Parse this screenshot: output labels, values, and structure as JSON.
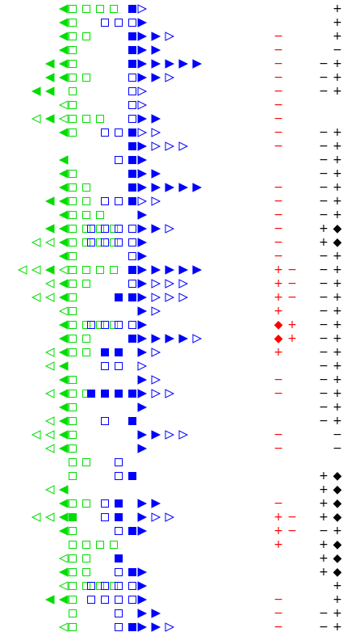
{
  "rows": [
    {
      "red": [],
      "black": [
        "+"
      ]
    },
    {
      "red": [],
      "black": [
        "+"
      ]
    },
    {
      "red": [
        "−"
      ],
      "black": [
        "+"
      ]
    },
    {
      "red": [
        "−"
      ],
      "black": [
        "−"
      ]
    },
    {
      "red": [
        "−"
      ],
      "black": [
        "−",
        "+"
      ]
    },
    {
      "red": [
        "−"
      ],
      "black": [
        "−",
        "+"
      ]
    },
    {
      "red": [
        "−"
      ],
      "black": [
        "−",
        "+"
      ]
    },
    {
      "red": [
        "−"
      ],
      "black": []
    },
    {
      "red": [
        "−"
      ],
      "black": []
    },
    {
      "red": [
        "−"
      ],
      "black": [
        "−",
        "+"
      ]
    },
    {
      "red": [
        "−"
      ],
      "black": [
        "−",
        "+"
      ]
    },
    {
      "red": [],
      "black": [
        "−",
        "+"
      ]
    },
    {
      "red": [],
      "black": [
        "−",
        "+"
      ]
    },
    {
      "red": [
        "−"
      ],
      "black": [
        "−",
        "+"
      ]
    },
    {
      "red": [
        "−"
      ],
      "black": [
        "−",
        "+"
      ]
    },
    {
      "red": [
        "−"
      ],
      "black": [
        "−",
        "+"
      ]
    },
    {
      "red": [
        "−"
      ],
      "black": [
        "+",
        "◆"
      ]
    },
    {
      "red": [
        "−"
      ],
      "black": [
        "+",
        "◆"
      ]
    },
    {
      "red": [
        "−"
      ],
      "black": [
        "−",
        "+"
      ]
    },
    {
      "red": [
        "+",
        "−"
      ],
      "black": [
        "−",
        "+"
      ]
    },
    {
      "red": [
        "+",
        "−"
      ],
      "black": [
        "−",
        "+"
      ]
    },
    {
      "red": [
        "+",
        "−"
      ],
      "black": [
        "−",
        "+"
      ]
    },
    {
      "red": [
        "+"
      ],
      "black": [
        "−",
        "+"
      ]
    },
    {
      "red": [
        "◆",
        "+"
      ],
      "black": [
        "−",
        "+"
      ]
    },
    {
      "red": [
        "◆",
        "+"
      ],
      "black": [
        "−",
        "+"
      ]
    },
    {
      "red": [
        "+"
      ],
      "black": [
        "−",
        "+"
      ]
    },
    {
      "red": [],
      "black": [
        "−",
        "+"
      ]
    },
    {
      "red": [
        "−"
      ],
      "black": [
        "−",
        "+"
      ]
    },
    {
      "red": [
        "−"
      ],
      "black": [
        "−",
        "+"
      ]
    },
    {
      "red": [],
      "black": [
        "−",
        "+"
      ]
    },
    {
      "red": [],
      "black": [
        "−",
        "+"
      ]
    },
    {
      "red": [
        "−"
      ],
      "black": [
        "−"
      ]
    },
    {
      "red": [
        "−"
      ],
      "black": [
        "−"
      ]
    },
    {
      "red": [],
      "black": []
    },
    {
      "red": [],
      "black": [
        "+",
        "◆"
      ]
    },
    {
      "red": [],
      "black": [
        "+",
        "◆"
      ]
    },
    {
      "red": [
        "−"
      ],
      "black": [
        "+",
        "◆"
      ]
    },
    {
      "red": [
        "+",
        "−"
      ],
      "black": [
        "+",
        "◆"
      ]
    },
    {
      "red": [
        "+",
        "−"
      ],
      "black": [
        "−",
        "+"
      ]
    },
    {
      "red": [
        "+"
      ],
      "black": [
        "+",
        "◆"
      ]
    },
    {
      "red": [],
      "black": [
        "+",
        "◆"
      ]
    },
    {
      "red": [],
      "black": [
        "+",
        "◆"
      ]
    },
    {
      "red": [],
      "black": [
        "+"
      ]
    },
    {
      "red": [
        "−"
      ],
      "black": [
        "+"
      ]
    },
    {
      "red": [
        "−"
      ],
      "black": [
        "−",
        "+"
      ]
    },
    {
      "red": [
        "−"
      ],
      "black": [
        "−",
        "+"
      ]
    }
  ]
}
